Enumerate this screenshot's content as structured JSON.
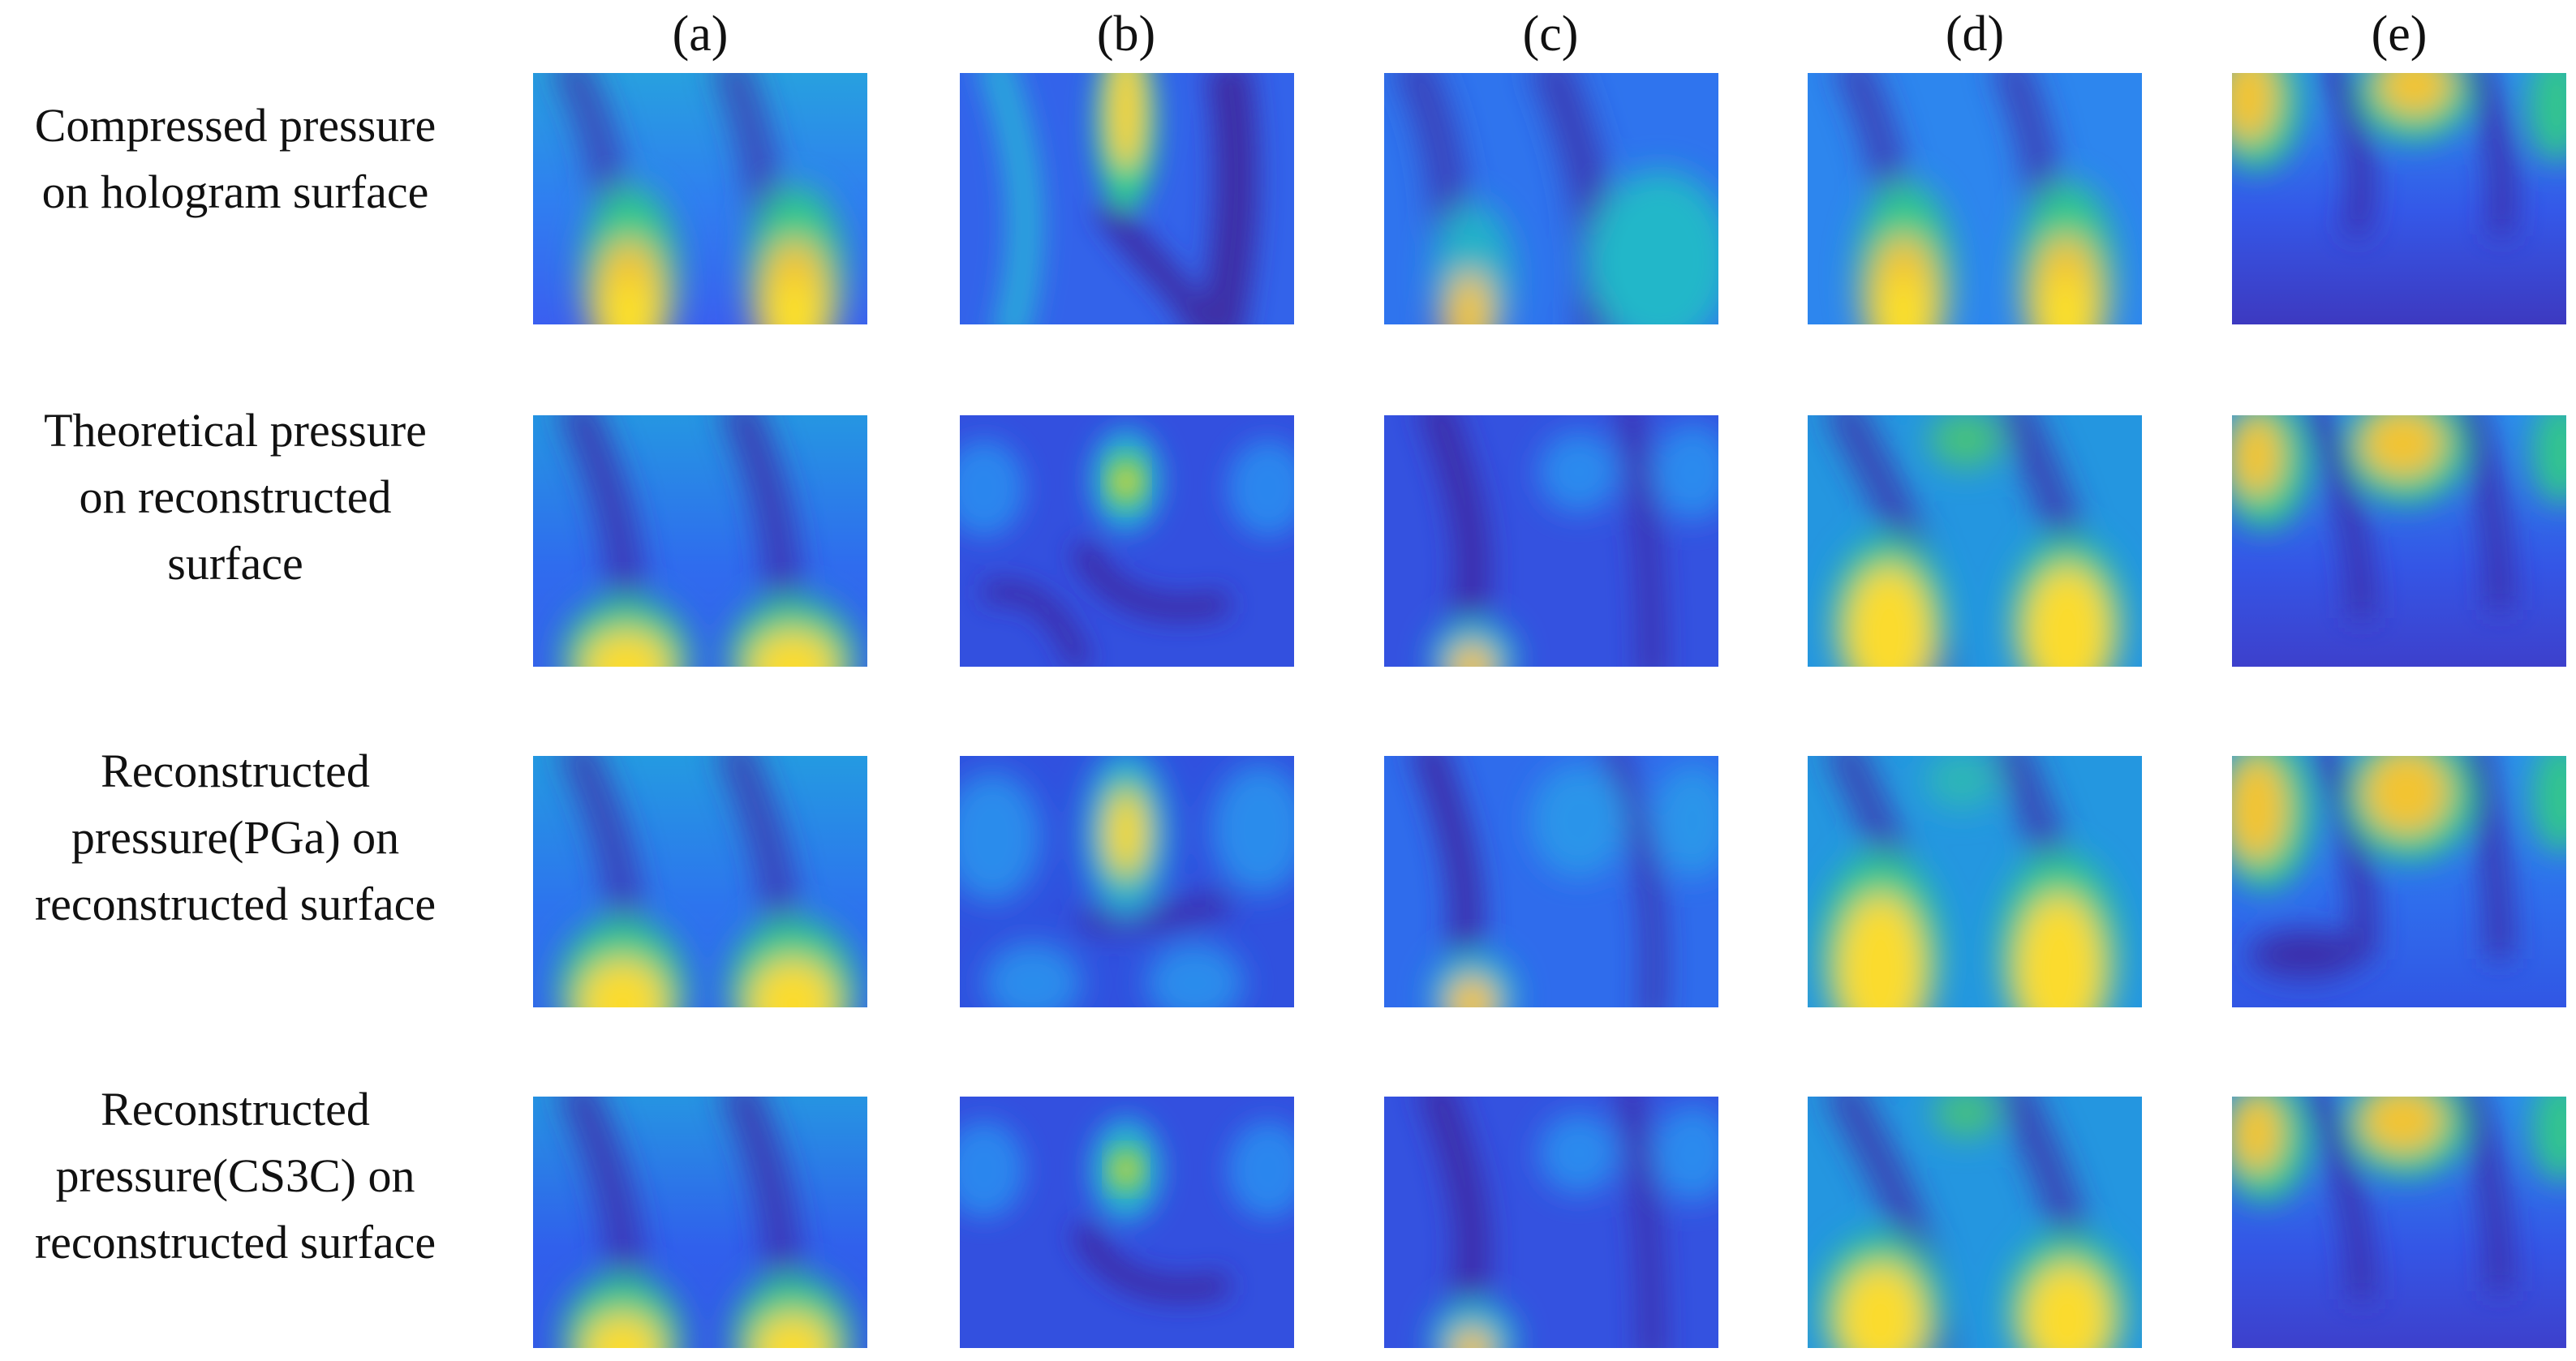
{
  "figure": {
    "columns": [
      {
        "id": "a",
        "label": "(a)"
      },
      {
        "id": "b",
        "label": "(b)"
      },
      {
        "id": "c",
        "label": "(c)"
      },
      {
        "id": "d",
        "label": "(d)"
      },
      {
        "id": "e",
        "label": "(e)"
      }
    ],
    "rows": [
      {
        "id": "compressed",
        "lines": [
          "Compressed pressure",
          "on hologram surface"
        ]
      },
      {
        "id": "theoretical",
        "lines": [
          "Theoretical pressure",
          "on reconstructed",
          "surface"
        ]
      },
      {
        "id": "pga",
        "lines": [
          "Reconstructed",
          "pressure(PGa) on",
          "reconstructed surface"
        ]
      },
      {
        "id": "cs3c",
        "lines": [
          "Reconstructed",
          "pressure(CS3C) on",
          "reconstructed surface"
        ]
      }
    ],
    "colormap": {
      "name": "parula",
      "low": "#3e26a8",
      "mid_low": "#2f69f3",
      "mid": "#1aa8d8",
      "mid_high": "#3fc08c",
      "high": "#fadf2d"
    }
  }
}
